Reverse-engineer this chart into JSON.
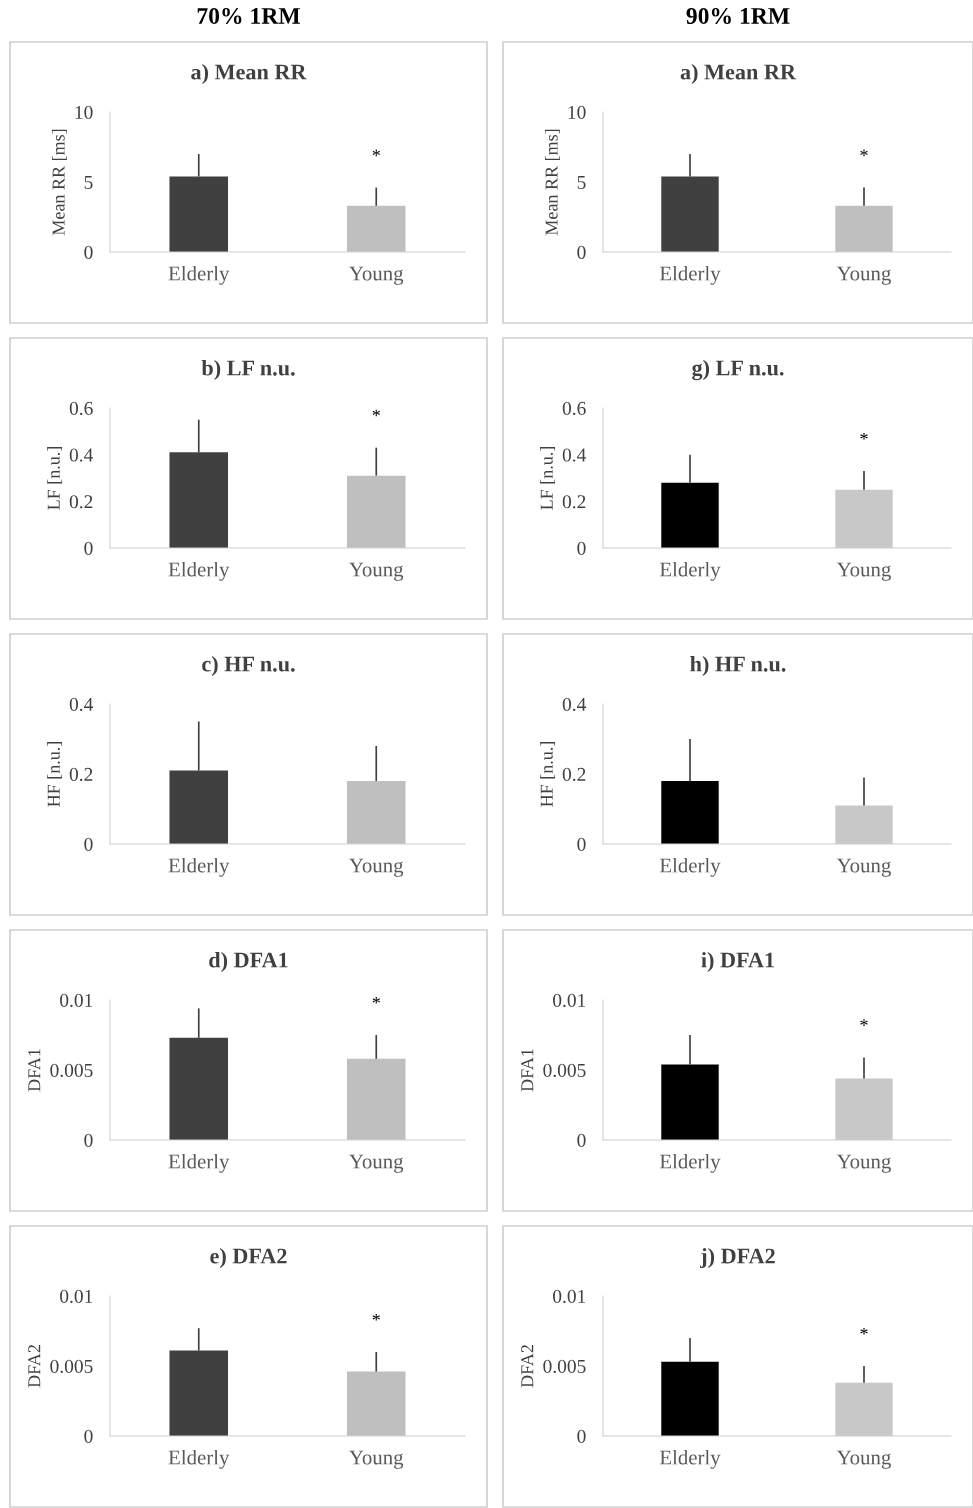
{
  "chart_data": [
    {
      "type": "bar",
      "title": "a) Mean RR",
      "ylabel": "Mean RR [ms]",
      "categories": [
        "Elderly",
        "Young"
      ],
      "values": [
        5.4,
        3.3
      ],
      "colors": [
        "#404040",
        "#bfbfbf"
      ],
      "errors": [
        [
          5.4,
          7.0
        ],
        [
          3.3,
          4.6
        ]
      ],
      "ylim": [
        0,
        10
      ],
      "yticks": [
        0,
        5,
        10
      ],
      "annotations": [
        "70% 1RM",
        "*"
      ]
    },
    {
      "type": "bar",
      "title": "a) Mean RR",
      "ylabel": "Mean RR [ms]",
      "categories": [
        "Elderly",
        "Young"
      ],
      "values": [
        5.4,
        3.3
      ],
      "colors": [
        "#404040",
        "#bfbfbf"
      ],
      "errors": [
        [
          5.4,
          7.0
        ],
        [
          3.3,
          4.6
        ]
      ],
      "ylim": [
        0,
        10
      ],
      "yticks": [
        0,
        5,
        10
      ],
      "annotations": [
        "90% 1RM",
        "*"
      ]
    },
    {
      "type": "bar",
      "title": "b) LF n.u.",
      "ylabel": "LF [n.u.]",
      "categories": [
        "Elderly",
        "Young"
      ],
      "values": [
        0.41,
        0.31
      ],
      "colors": [
        "#404040",
        "#bfbfbf"
      ],
      "errors": [
        [
          0.41,
          0.55
        ],
        [
          0.31,
          0.43
        ]
      ],
      "ylim": [
        0,
        0.6
      ],
      "yticks": [
        0,
        0.2,
        0.4,
        0.6
      ],
      "annotations": [
        "*"
      ]
    },
    {
      "type": "bar",
      "title": "g) LF n.u.",
      "ylabel": "LF [n.u.]",
      "categories": [
        "Elderly",
        "Young"
      ],
      "values": [
        0.28,
        0.25
      ],
      "colors": [
        "#000000",
        "#c8c8c8"
      ],
      "errors": [
        [
          0.28,
          0.4
        ],
        [
          0.25,
          0.33
        ]
      ],
      "ylim": [
        0,
        0.6
      ],
      "yticks": [
        0,
        0.2,
        0.4,
        0.6
      ],
      "annotations": [
        "*"
      ]
    },
    {
      "type": "bar",
      "title": "c) HF n.u.",
      "ylabel": "HF [n.u.]",
      "categories": [
        "Elderly",
        "Young"
      ],
      "values": [
        0.21,
        0.18
      ],
      "colors": [
        "#404040",
        "#bfbfbf"
      ],
      "errors": [
        [
          0.21,
          0.35
        ],
        [
          0.18,
          0.28
        ]
      ],
      "ylim": [
        0,
        0.4
      ],
      "yticks": [
        0,
        0.2,
        0.4
      ]
    },
    {
      "type": "bar",
      "title": "h) HF n.u.",
      "ylabel": "HF [n.u.]",
      "categories": [
        "Elderly",
        "Young"
      ],
      "values": [
        0.18,
        0.11
      ],
      "colors": [
        "#000000",
        "#c8c8c8"
      ],
      "errors": [
        [
          0.18,
          0.3
        ],
        [
          0.11,
          0.19
        ]
      ],
      "ylim": [
        0,
        0.4
      ],
      "yticks": [
        0,
        0.2,
        0.4
      ]
    },
    {
      "type": "bar",
      "title": "d) DFA1",
      "ylabel": "DFA1",
      "categories": [
        "Elderly",
        "Young"
      ],
      "values": [
        0.0073,
        0.0058
      ],
      "colors": [
        "#404040",
        "#bfbfbf"
      ],
      "errors": [
        [
          0.0073,
          0.0094
        ],
        [
          0.0058,
          0.0075
        ]
      ],
      "ylim": [
        0,
        0.01
      ],
      "yticks": [
        0,
        0.005,
        0.01
      ],
      "annotations": [
        "*"
      ]
    },
    {
      "type": "bar",
      "title": "i) DFA1",
      "ylabel": "DFA1",
      "categories": [
        "Elderly",
        "Young"
      ],
      "values": [
        0.0054,
        0.0044
      ],
      "colors": [
        "#000000",
        "#c8c8c8"
      ],
      "errors": [
        [
          0.0054,
          0.0075
        ],
        [
          0.0044,
          0.0059
        ]
      ],
      "ylim": [
        0,
        0.01
      ],
      "yticks": [
        0,
        0.005,
        0.01
      ],
      "annotations": [
        "*"
      ]
    },
    {
      "type": "bar",
      "title": "e) DFA2",
      "ylabel": "DFA2",
      "categories": [
        "Elderly",
        "Young"
      ],
      "values": [
        0.0061,
        0.0046
      ],
      "colors": [
        "#404040",
        "#bfbfbf"
      ],
      "errors": [
        [
          0.0061,
          0.0077
        ],
        [
          0.0046,
          0.006
        ]
      ],
      "ylim": [
        0,
        0.01
      ],
      "yticks": [
        0,
        0.005,
        0.01
      ],
      "annotations": [
        "*"
      ]
    },
    {
      "type": "bar",
      "title": "j) DFA2",
      "ylabel": "DFA2",
      "categories": [
        "Elderly",
        "Young"
      ],
      "values": [
        0.0053,
        0.0038
      ],
      "colors": [
        "#000000",
        "#c8c8c8"
      ],
      "errors": [
        [
          0.0053,
          0.007
        ],
        [
          0.0038,
          0.005
        ]
      ],
      "ylim": [
        0,
        0.01
      ],
      "yticks": [
        0,
        0.005,
        0.01
      ],
      "annotations": [
        "*"
      ]
    }
  ]
}
